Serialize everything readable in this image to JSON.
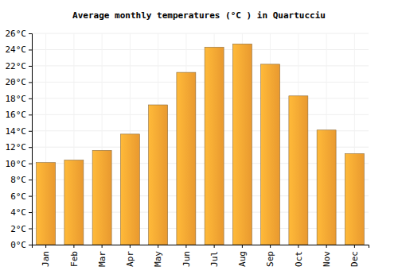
{
  "chart_data": {
    "type": "bar",
    "title": "Average monthly temperatures (°C ) in Quartucciu",
    "categories": [
      "Jan",
      "Feb",
      "Mar",
      "Apr",
      "May",
      "Jun",
      "Jul",
      "Aug",
      "Sep",
      "Oct",
      "Nov",
      "Dec"
    ],
    "values": [
      10.1,
      10.4,
      11.6,
      13.6,
      17.2,
      21.2,
      24.3,
      24.7,
      22.2,
      18.3,
      14.1,
      11.2
    ],
    "color": "#ffa733",
    "ylim": [
      0,
      26
    ],
    "yticks": [
      {
        "value": 0,
        "label": "0°C"
      },
      {
        "value": 2,
        "label": "2°C"
      },
      {
        "value": 4,
        "label": "4°C"
      },
      {
        "value": 6,
        "label": "6°C"
      },
      {
        "value": 8,
        "label": "8°C"
      },
      {
        "value": 10,
        "label": "10°C"
      },
      {
        "value": 12,
        "label": "12°C"
      },
      {
        "value": 14,
        "label": "14°C"
      },
      {
        "value": 16,
        "label": "16°C"
      },
      {
        "value": 18,
        "label": "18°C"
      },
      {
        "value": 20,
        "label": "20°C"
      },
      {
        "value": 22,
        "label": "22°C"
      },
      {
        "value": 24,
        "label": "24°C"
      },
      {
        "value": 26,
        "label": "26°C"
      }
    ],
    "grid": true
  }
}
